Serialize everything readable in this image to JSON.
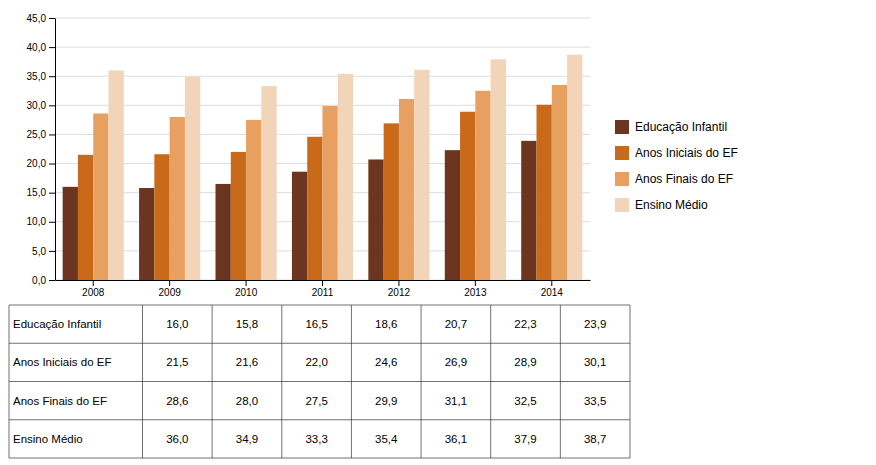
{
  "chart_data": {
    "type": "bar",
    "categories": [
      "2008",
      "2009",
      "2010",
      "2011",
      "2012",
      "2013",
      "2014"
    ],
    "series": [
      {
        "name": "Educação Infantil",
        "color": "#6B3520",
        "values": [
          16.0,
          15.8,
          16.5,
          18.6,
          20.7,
          22.3,
          23.9
        ],
        "value_labels": [
          "16,0",
          "15,8",
          "16,5",
          "18,6",
          "20,7",
          "22,3",
          "23,9"
        ]
      },
      {
        "name": "Anos Iniciais do EF",
        "color": "#C96A1A",
        "values": [
          21.5,
          21.6,
          22.0,
          24.6,
          26.9,
          28.9,
          30.1
        ],
        "value_labels": [
          "21,5",
          "21,6",
          "22,0",
          "24,6",
          "26,9",
          "28,9",
          "30,1"
        ]
      },
      {
        "name": "Anos Finais do EF",
        "color": "#E8A060",
        "values": [
          28.6,
          28.0,
          27.5,
          29.9,
          31.1,
          32.5,
          33.5
        ],
        "value_labels": [
          "28,6",
          "28,0",
          "27,5",
          "29,9",
          "31,1",
          "32,5",
          "33,5"
        ]
      },
      {
        "name": "Ensino Médio",
        "color": "#F2D5B8",
        "values": [
          36.0,
          34.9,
          33.3,
          35.4,
          36.1,
          37.9,
          38.7
        ],
        "value_labels": [
          "36,0",
          "34,9",
          "33,3",
          "35,4",
          "36,1",
          "37,9",
          "38,7"
        ]
      }
    ],
    "ylim": [
      0,
      45
    ],
    "yticks": [
      {
        "value": 0,
        "label": "0,0"
      },
      {
        "value": 5,
        "label": "5,0"
      },
      {
        "value": 10,
        "label": "10,0"
      },
      {
        "value": 15,
        "label": "15,0"
      },
      {
        "value": 20,
        "label": "20,0"
      },
      {
        "value": 25,
        "label": "25,0"
      },
      {
        "value": 30,
        "label": "30,0"
      },
      {
        "value": 35,
        "label": "35,0"
      },
      {
        "value": 40,
        "label": "40,0"
      },
      {
        "value": 45,
        "label": "45,0"
      }
    ],
    "grid": true,
    "legend": "right"
  }
}
